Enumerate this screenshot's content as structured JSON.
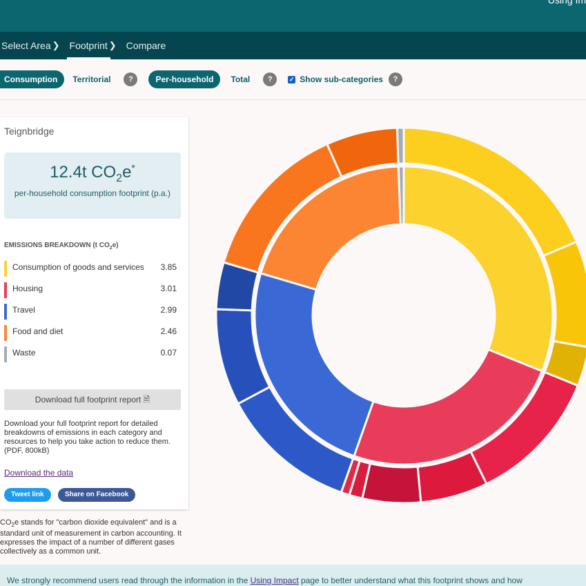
{
  "header": {
    "corner_text": "Using Im"
  },
  "breadcrumb": [
    "Select Area",
    "Footprint",
    "Compare"
  ],
  "options": {
    "consumption": "Consumption",
    "territorial": "Territorial",
    "per_household": "Per-household",
    "total": "Total",
    "show_sub": "Show sub-categories",
    "help": "?",
    "show_sub_checked": true
  },
  "panel": {
    "area": "Teignbridge",
    "headline_value": "12.4t CO",
    "headline_sub": "2",
    "headline_suffix": "e",
    "headline_star": "*",
    "headline_desc": "per-household consumption footprint (p.a.)",
    "breakdown_title": "EMISSIONS BREAKDOWN (t CO",
    "breakdown_sub": "2",
    "breakdown_end": "e)",
    "download_report": "Download full footprint report",
    "report_desc": "Download your full footprint report for detailed breakdowns of emissions in each category and resources to help you take action to reduce them. (PDF, 800kB)",
    "download_data": "Download the data",
    "tweet": "Tweet link",
    "facebook": "Share on Facebook"
  },
  "footnote": {
    "a": "CO",
    "sub": "2",
    "b": "e stands for \"carbon dioxide equivalent\" and is a standard unit of measurement in carbon accounting. It expresses the impact of a number of different gases collectively as a common unit."
  },
  "banner": {
    "a": "We strongly recommend users read through the information in the ",
    "link": "Using Impact",
    "b": " page to better understand what this footprint shows and how"
  },
  "chart_data": {
    "type": "sunburst",
    "unit": "t CO2e",
    "categories": [
      {
        "label": "Consumption of goods and services",
        "value": "3.85",
        "v": 3.85,
        "color": "#fbd22e",
        "sub_values": [
          2.3,
          1.13,
          0.42
        ],
        "sub_colors": [
          "#fccf1e",
          "#f8c509",
          "#dfb203"
        ]
      },
      {
        "label": "Housing",
        "value": "3.01",
        "v": 3.01,
        "color": "#e83c5a",
        "sub_values": [
          1.44,
          0.72,
          0.62,
          0.14,
          0.09
        ],
        "sub_colors": [
          "#e8234a",
          "#dc1a3e",
          "#c4143a",
          "#d81e40",
          "#e02a4a"
        ]
      },
      {
        "label": "Travel",
        "value": "2.99",
        "v": 2.99,
        "color": "#3a68d4",
        "sub_values": [
          1.46,
          1.03,
          0.5
        ],
        "sub_colors": [
          "#2c58c8",
          "#2750bb",
          "#2248a5"
        ]
      },
      {
        "label": "Food and diet",
        "value": "2.46",
        "v": 2.46,
        "color": "#fb8532",
        "sub_values": [
          1.7,
          0.76
        ],
        "sub_colors": [
          "#f9761e",
          "#ef660c"
        ]
      },
      {
        "label": "Waste",
        "value": "0.07",
        "v": 0.07,
        "color": "#a2acb6",
        "sub_values": [
          0.07
        ],
        "sub_colors": [
          "#a2acb6"
        ]
      }
    ]
  }
}
